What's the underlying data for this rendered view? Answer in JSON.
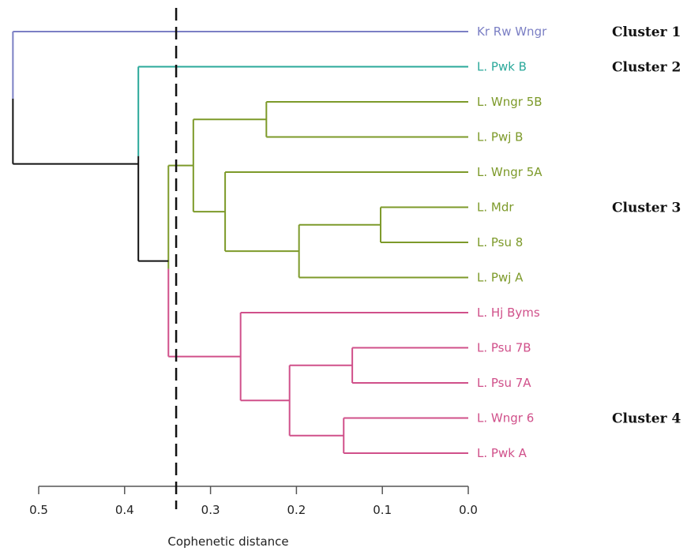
{
  "chart_data": {
    "type": "dendrogram",
    "xlabel": "Cophenetic distance",
    "xlim": [
      0.5,
      0.0
    ],
    "ticks": [
      "0.5",
      "0.4",
      "0.3",
      "0.2",
      "0.1",
      "0.0"
    ],
    "tick_values": [
      0.5,
      0.4,
      0.3,
      0.2,
      0.1,
      0.0
    ],
    "cut_distance": 0.34,
    "colors": {
      "cluster1": "#7b7fc4",
      "cluster2": "#2aa89a",
      "cluster3": "#7d9a2a",
      "cluster4": "#d0508a",
      "root": "#111111",
      "axis": "#555555",
      "cut": "#111111"
    },
    "leaves": [
      {
        "label": "Kr Rw Wngr",
        "cluster": "cluster1"
      },
      {
        "label": "L. Pwk B",
        "cluster": "cluster2"
      },
      {
        "label": "L. Wngr 5B",
        "cluster": "cluster3"
      },
      {
        "label": "L. Pwj B",
        "cluster": "cluster3"
      },
      {
        "label": "L. Wngr 5A",
        "cluster": "cluster3"
      },
      {
        "label": "L. Mdr",
        "cluster": "cluster3"
      },
      {
        "label": "L. Psu 8",
        "cluster": "cluster3"
      },
      {
        "label": "L. Pwj A",
        "cluster": "cluster3"
      },
      {
        "label": "L. Hj Byms",
        "cluster": "cluster4"
      },
      {
        "label": "L. Psu 7B",
        "cluster": "cluster4"
      },
      {
        "label": "L. Psu 7A",
        "cluster": "cluster4"
      },
      {
        "label": "L. Wngr 6",
        "cluster": "cluster4"
      },
      {
        "label": "L. Pwk A",
        "cluster": "cluster4"
      }
    ],
    "merges": [
      {
        "id": "m1",
        "a": "L. Wngr 5B",
        "b": "L. Pwj B",
        "distance": 0.235,
        "cluster": "cluster3"
      },
      {
        "id": "m2",
        "a": "L. Mdr",
        "b": "L. Psu 8",
        "distance": 0.102,
        "cluster": "cluster3"
      },
      {
        "id": "m3",
        "a": "m2",
        "b": "L. Pwj A",
        "distance": 0.197,
        "cluster": "cluster3"
      },
      {
        "id": "m4",
        "a": "L. Wngr 5A",
        "b": "m3",
        "distance": 0.283,
        "cluster": "cluster3"
      },
      {
        "id": "m5",
        "a": "m1",
        "b": "m4",
        "distance": 0.32,
        "cluster": "cluster3"
      },
      {
        "id": "m6",
        "a": "L. Psu 7B",
        "b": "L. Psu 7A",
        "distance": 0.135,
        "cluster": "cluster4"
      },
      {
        "id": "m7",
        "a": "L. Wngr 6",
        "b": "L. Pwk A",
        "distance": 0.145,
        "cluster": "cluster4"
      },
      {
        "id": "m8",
        "a": "m6",
        "b": "m7",
        "distance": 0.208,
        "cluster": "cluster4"
      },
      {
        "id": "m9",
        "a": "L. Hj Byms",
        "b": "m8",
        "distance": 0.265,
        "cluster": "cluster4"
      },
      {
        "id": "m10",
        "a": "m5",
        "b": "m9",
        "distance": 0.349,
        "cluster": "cluster3"
      },
      {
        "id": "m11",
        "a": "L. Pwk B",
        "b": "m10",
        "distance": 0.384,
        "cluster": "cluster2"
      },
      {
        "id": "m12",
        "a": "m11",
        "b": "Kr Rw Wngr",
        "distance": 0.53,
        "cluster": "root"
      }
    ]
  },
  "clusters": [
    {
      "label": "Cluster 1",
      "anchor": "Kr Rw Wngr"
    },
    {
      "label": "Cluster 2",
      "anchor": "L. Pwk B"
    },
    {
      "label": "Cluster 3",
      "anchor": "L. Mdr"
    },
    {
      "label": "Cluster 4",
      "anchor": "L. Wngr 6"
    }
  ]
}
